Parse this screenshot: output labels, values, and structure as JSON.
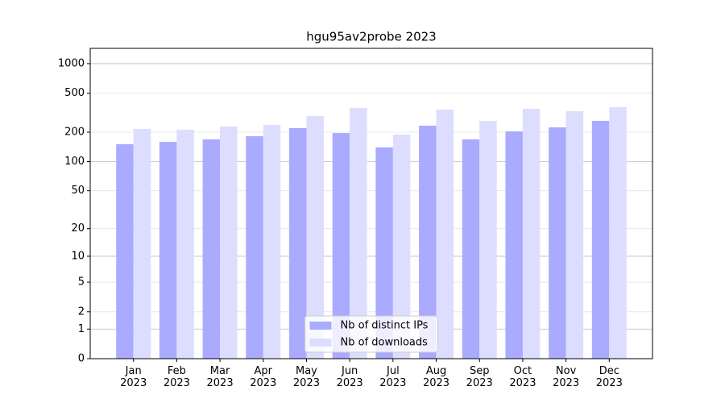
{
  "chart_data": {
    "type": "bar",
    "title": "hgu95av2probe 2023",
    "categories": [
      "Jan\n2023",
      "Feb\n2023",
      "Mar\n2023",
      "Apr\n2023",
      "May\n2023",
      "Jun\n2023",
      "Jul\n2023",
      "Aug\n2023",
      "Sep\n2023",
      "Oct\n2023",
      "Nov\n2023",
      "Dec\n2023"
    ],
    "series": [
      {
        "name": "Nb of distinct IPs",
        "color": "#aaaaff",
        "values": [
          151,
          159,
          169,
          182,
          220,
          196,
          140,
          233,
          169,
          204,
          224,
          261
        ]
      },
      {
        "name": "Nb of downloads",
        "color": "#ddddff",
        "values": [
          216,
          212,
          228,
          237,
          292,
          353,
          189,
          340,
          261,
          346,
          327,
          360
        ]
      }
    ],
    "yscale": "log1p",
    "ylim": [
      0,
      1430
    ],
    "yticks": [
      0,
      1,
      2,
      5,
      10,
      20,
      50,
      100,
      200,
      500,
      1000
    ],
    "grid": true,
    "legend": "lower center"
  }
}
